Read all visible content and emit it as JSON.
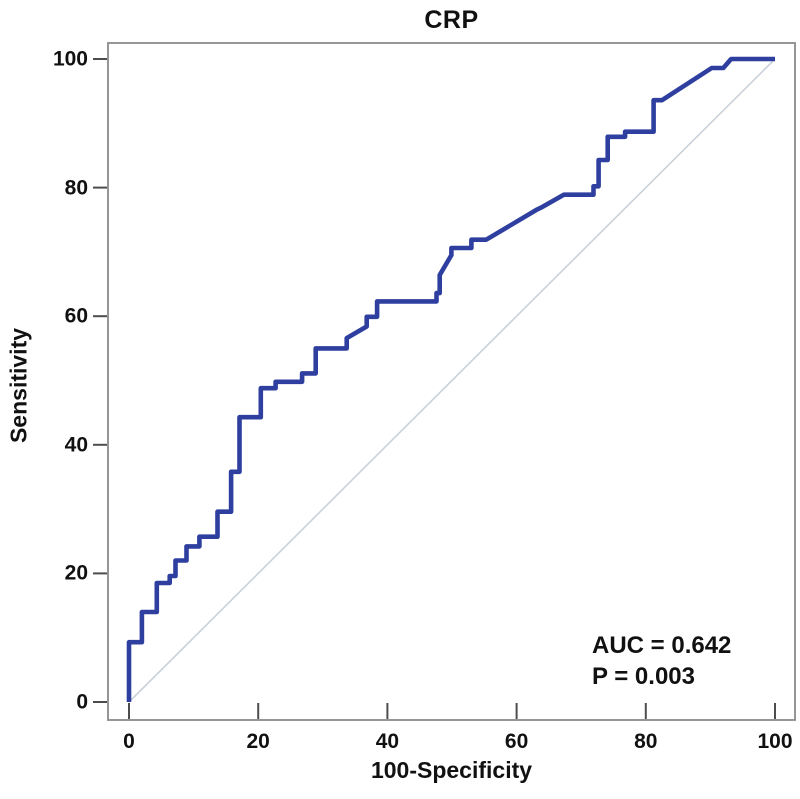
{
  "title": "CRP",
  "axes": {
    "x_label": "100-Specificity",
    "y_label": "Sensitivity"
  },
  "annotation": {
    "auc_label": "AUC = 0.642",
    "p_label": "P = 0.003"
  },
  "colors": {
    "roc_curve": "#2e3f9f",
    "reference_line": "#c9d2da",
    "frame": "#8a8a8a",
    "tick": "#4d4d4d",
    "text": "#111111",
    "background": "#ffffff"
  },
  "chart_data": {
    "type": "line",
    "subtype": "roc-curve",
    "title": "CRP",
    "xlabel": "100-Specificity",
    "ylabel": "Sensitivity",
    "xlim": [
      0,
      100
    ],
    "ylim": [
      0,
      100
    ],
    "xticks": [
      0,
      20,
      40,
      60,
      80,
      100
    ],
    "yticks": [
      0,
      20,
      40,
      60,
      80,
      100
    ],
    "grid": false,
    "legend": "none",
    "auc": 0.642,
    "p_value": 0.003,
    "annotations": [
      "AUC = 0.642",
      "P = 0.003"
    ],
    "series": [
      {
        "name": "ROC curve (CRP)",
        "role": "roc",
        "points": [
          [
            0,
            0
          ],
          [
            0,
            9.3
          ],
          [
            2,
            9.3
          ],
          [
            2,
            14
          ],
          [
            4.3,
            14
          ],
          [
            4.3,
            18.5
          ],
          [
            6.3,
            18.5
          ],
          [
            6.3,
            19.6
          ],
          [
            7.2,
            19.6
          ],
          [
            7.2,
            22
          ],
          [
            8.9,
            22
          ],
          [
            8.9,
            24.2
          ],
          [
            10.9,
            24.2
          ],
          [
            10.9,
            25.7
          ],
          [
            13.7,
            25.7
          ],
          [
            13.7,
            29.6
          ],
          [
            15.8,
            29.6
          ],
          [
            15.8,
            35.8
          ],
          [
            17.1,
            35.8
          ],
          [
            17.1,
            44.3
          ],
          [
            20.4,
            44.3
          ],
          [
            20.4,
            48.8
          ],
          [
            22.7,
            48.8
          ],
          [
            22.7,
            49.8
          ],
          [
            26.8,
            49.8
          ],
          [
            26.8,
            51.1
          ],
          [
            28.9,
            51.1
          ],
          [
            28.9,
            55
          ],
          [
            33.7,
            55
          ],
          [
            33.7,
            56.6
          ],
          [
            36.8,
            58.4
          ],
          [
            36.8,
            59.9
          ],
          [
            38.4,
            59.9
          ],
          [
            38.4,
            62.3
          ],
          [
            47.6,
            62.3
          ],
          [
            47.6,
            63.6
          ],
          [
            48.1,
            63.6
          ],
          [
            48.1,
            66.4
          ],
          [
            49.9,
            69.5
          ],
          [
            49.9,
            70.6
          ],
          [
            53,
            70.6
          ],
          [
            53,
            71.9
          ],
          [
            55.3,
            71.9
          ],
          [
            63,
            76.5
          ],
          [
            64,
            77
          ],
          [
            67.3,
            78.9
          ],
          [
            71.9,
            78.9
          ],
          [
            71.9,
            80.2
          ],
          [
            72.7,
            80.2
          ],
          [
            72.7,
            84.3
          ],
          [
            74.1,
            84.3
          ],
          [
            74.1,
            87.9
          ],
          [
            76.8,
            87.9
          ],
          [
            76.8,
            88.7
          ],
          [
            81.2,
            88.7
          ],
          [
            81.2,
            93.6
          ],
          [
            82.5,
            93.6
          ],
          [
            90.2,
            98.6
          ],
          [
            92,
            98.6
          ],
          [
            93.2,
            100
          ],
          [
            100,
            100
          ]
        ]
      },
      {
        "name": "Reference diagonal",
        "role": "reference",
        "points": [
          [
            0,
            0
          ],
          [
            100,
            100
          ]
        ]
      }
    ]
  }
}
